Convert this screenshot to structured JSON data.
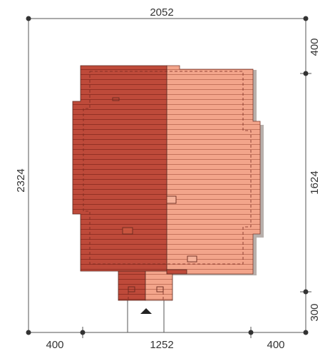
{
  "dimensions": {
    "top_total": "2052",
    "left_total": "2324",
    "right_upper": "400",
    "right_middle": "1624",
    "right_lower": "300",
    "bottom_left": "400",
    "bottom_middle": "1252",
    "bottom_right": "400"
  },
  "colors": {
    "roof_dark": "#be4a3a",
    "roof_light": "#f3a58b",
    "roof_line_dark": "#8e2e22",
    "roof_line_light": "#c06e58",
    "outline": "#5a2a22",
    "shadow": "#b8b0ac",
    "dimension": "#333333"
  },
  "entrance_marker": "arrow-up"
}
